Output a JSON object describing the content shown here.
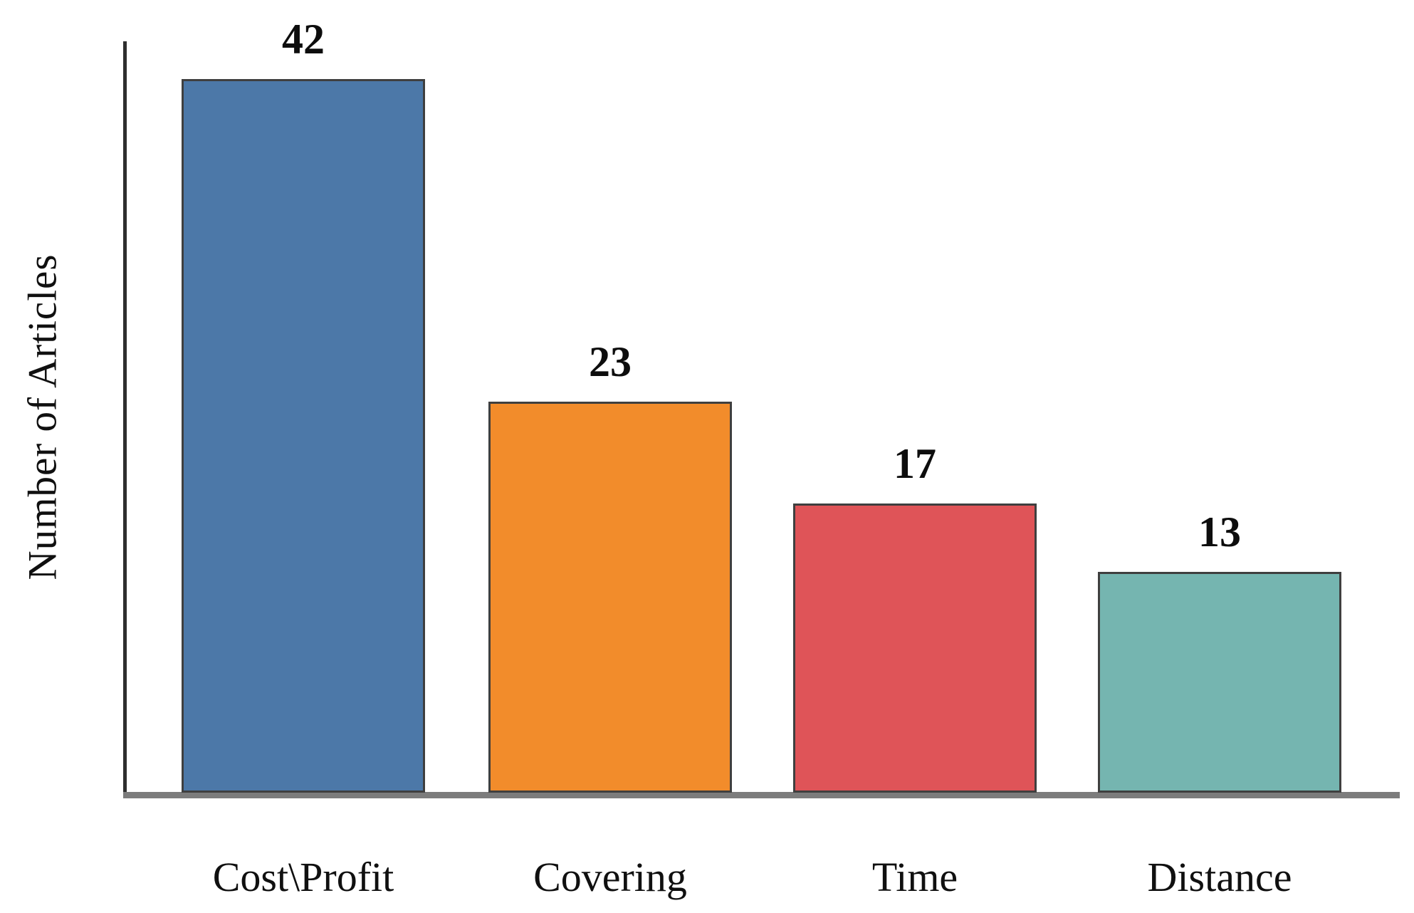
{
  "chart_data": {
    "type": "bar",
    "categories": [
      "Cost\\Profit",
      "Covering",
      "Time",
      "Distance"
    ],
    "values": [
      42,
      23,
      17,
      13
    ],
    "colors": [
      "#4C78A8",
      "#F28C2B",
      "#DF5458",
      "#75B5B0"
    ],
    "bar_border_color": "#3f3f3f",
    "title": "",
    "xlabel": "",
    "ylabel": "Number of Articles",
    "ylim": [
      0,
      44
    ],
    "grid": false,
    "legend": "none",
    "value_labels_shown": true,
    "axis_line_color": "#2e2e2e",
    "baseline_color": "#7c7c7c"
  }
}
